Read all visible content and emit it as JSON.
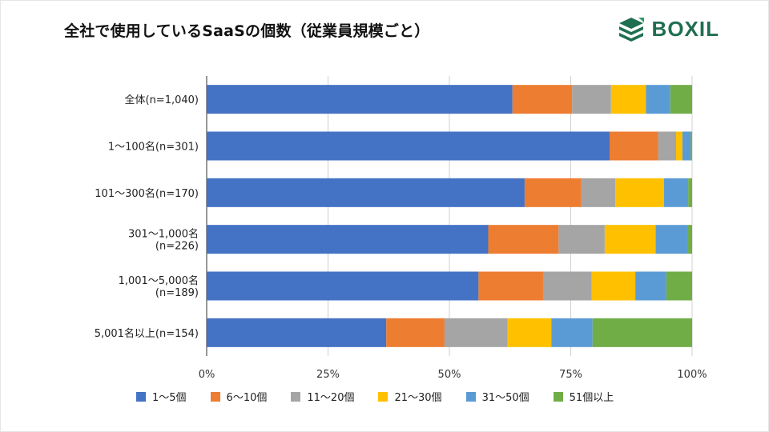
{
  "header": {
    "title": "全社で使用しているSaaSの個数（従業員規模ごと）",
    "brand": "BOXIL"
  },
  "chart_data": {
    "type": "bar",
    "orientation": "horizontal",
    "stacked": true,
    "percent": true,
    "title": "全社で使用しているSaaSの個数（従業員規模ごと）",
    "categories": [
      [
        "全体(n=1,040)"
      ],
      [
        "1～100名(n=301)"
      ],
      [
        "101～300名(n=170)"
      ],
      [
        "301～1,000名",
        "(n=226)"
      ],
      [
        "1,001～5,000名",
        "(n=189)"
      ],
      [
        "5,001名以上(n=154)"
      ]
    ],
    "x_ticks": [
      "0%",
      "25%",
      "50%",
      "75%",
      "100%"
    ],
    "xlim": [
      0,
      100
    ],
    "legend_position": "bottom",
    "series": [
      {
        "name": "1～5個",
        "color": "#4472c4",
        "values": [
          63,
          83,
          65.5,
          58,
          56,
          37
        ]
      },
      {
        "name": "6～10個",
        "color": "#ed7d31",
        "values": [
          12.3,
          10,
          11.7,
          14.5,
          13.3,
          12
        ]
      },
      {
        "name": "11～20個",
        "color": "#a5a5a5",
        "values": [
          8,
          3.7,
          7,
          9.5,
          10,
          13
        ]
      },
      {
        "name": "21～30個",
        "color": "#ffc000",
        "values": [
          7.2,
          1.3,
          10,
          10.5,
          9,
          9
        ]
      },
      {
        "name": "31～50個",
        "color": "#5b9bd5",
        "values": [
          5,
          1.7,
          5,
          6.5,
          6.4,
          8.5
        ]
      },
      {
        "name": "51個以上",
        "color": "#70ad47",
        "values": [
          4.5,
          0.3,
          0.8,
          1,
          5.3,
          20.5
        ]
      }
    ]
  }
}
